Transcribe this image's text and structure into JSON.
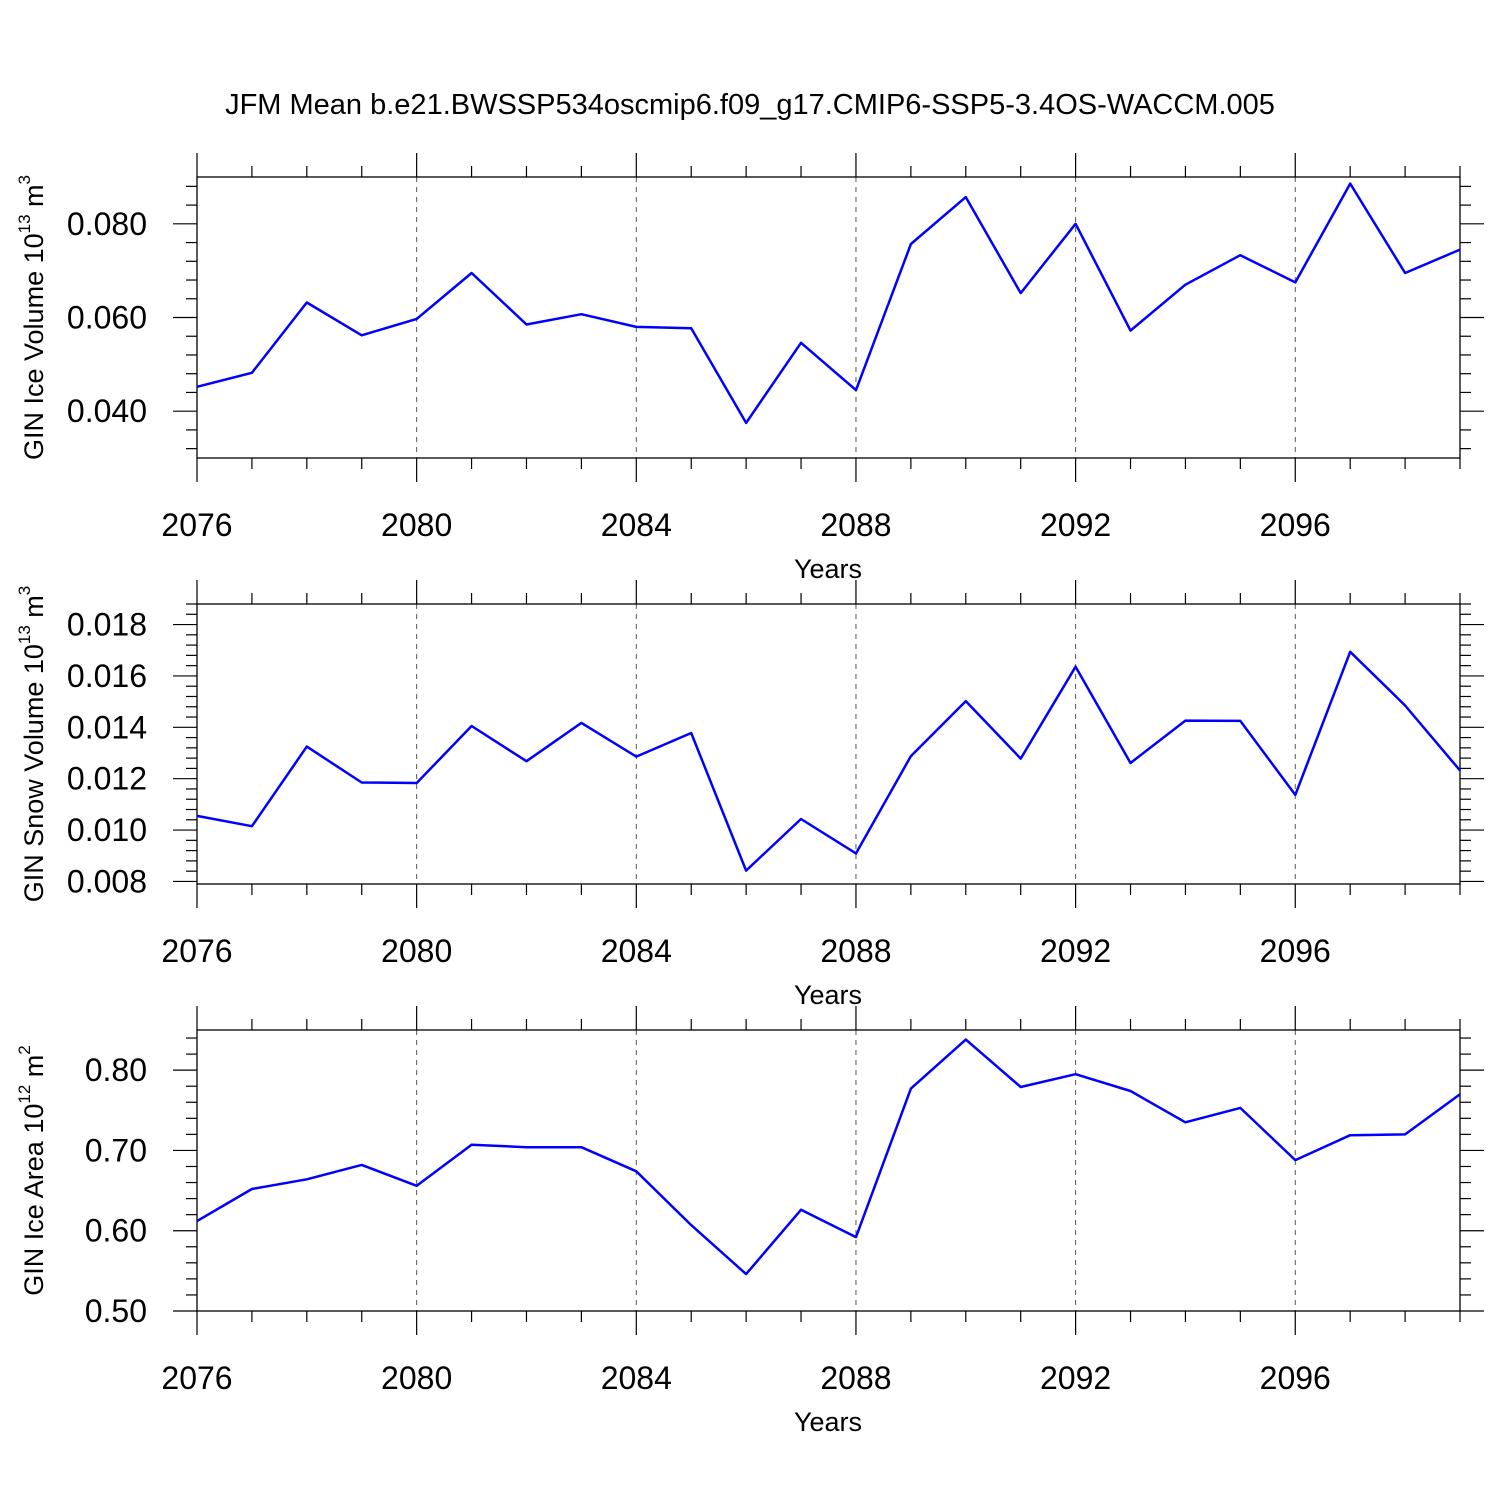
{
  "title": "JFM Mean b.e21.BWSSP534oscmip6.f09_g17.CMIP6-SSP5-3.4OS-WACCM.005",
  "line_color": "#0000ff",
  "chart_data": [
    {
      "type": "line",
      "ylabel_text": "GIN Ice Volume 10",
      "ylabel_exp": "13",
      "ylabel_unit": " m",
      "ylabel_unit_exp": "3",
      "xlabel": "Years",
      "xlim": [
        2076,
        2099
      ],
      "ylim": [
        0.03,
        0.09
      ],
      "yticks": [
        "0.040",
        "0.060",
        "0.080"
      ],
      "ytick_values": [
        0.04,
        0.06,
        0.08
      ],
      "xticks": [
        "2076",
        "2080",
        "2084",
        "2088",
        "2092",
        "2096"
      ],
      "xtick_values": [
        2076,
        2080,
        2084,
        2088,
        2092,
        2096
      ],
      "grid": "vertical dashed at major x ticks",
      "x": [
        2076,
        2077,
        2078,
        2079,
        2080,
        2081,
        2082,
        2083,
        2084,
        2085,
        2086,
        2087,
        2088,
        2089,
        2090,
        2091,
        2092,
        2093,
        2094,
        2095,
        2096,
        2097,
        2098,
        2099
      ],
      "values": [
        0.0452,
        0.0482,
        0.0632,
        0.0562,
        0.0597,
        0.0695,
        0.0585,
        0.0607,
        0.058,
        0.0577,
        0.0375,
        0.0546,
        0.0445,
        0.0757,
        0.0857,
        0.0652,
        0.08,
        0.0572,
        0.067,
        0.0733,
        0.0675,
        0.0886,
        0.0695,
        0.0745
      ]
    },
    {
      "type": "line",
      "ylabel_text": "GIN Snow Volume 10",
      "ylabel_exp": "13",
      "ylabel_unit": " m",
      "ylabel_unit_exp": "3",
      "xlabel": "Years",
      "xlim": [
        2076,
        2099
      ],
      "ylim": [
        0.0079,
        0.0188
      ],
      "yticks": [
        "0.008",
        "0.010",
        "0.012",
        "0.014",
        "0.016",
        "0.018"
      ],
      "ytick_values": [
        0.008,
        0.01,
        0.012,
        0.014,
        0.016,
        0.018
      ],
      "xticks": [
        "2076",
        "2080",
        "2084",
        "2088",
        "2092",
        "2096"
      ],
      "xtick_values": [
        2076,
        2080,
        2084,
        2088,
        2092,
        2096
      ],
      "grid": "vertical dashed at major x ticks",
      "x": [
        2076,
        2077,
        2078,
        2079,
        2080,
        2081,
        2082,
        2083,
        2084,
        2085,
        2086,
        2087,
        2088,
        2089,
        2090,
        2091,
        2092,
        2093,
        2094,
        2095,
        2096,
        2097,
        2098,
        2099
      ],
      "values": [
        0.01055,
        0.01015,
        0.01325,
        0.01185,
        0.01183,
        0.01405,
        0.01268,
        0.01417,
        0.01286,
        0.01378,
        0.00842,
        0.01043,
        0.00909,
        0.01288,
        0.01502,
        0.01278,
        0.01636,
        0.01261,
        0.01426,
        0.01425,
        0.01137,
        0.01694,
        0.01485,
        0.01232
      ]
    },
    {
      "type": "line",
      "ylabel_text": "GIN Ice Area 10",
      "ylabel_exp": "12",
      "ylabel_unit": " m",
      "ylabel_unit_exp": "2",
      "xlabel": "Years",
      "xlim": [
        2076,
        2099
      ],
      "ylim": [
        0.5,
        0.85
      ],
      "yticks": [
        "0.50",
        "0.60",
        "0.70",
        "0.80"
      ],
      "ytick_values": [
        0.5,
        0.6,
        0.7,
        0.8
      ],
      "xticks": [
        "2076",
        "2080",
        "2084",
        "2088",
        "2092",
        "2096"
      ],
      "xtick_values": [
        2076,
        2080,
        2084,
        2088,
        2092,
        2096
      ],
      "grid": "vertical dashed at major x ticks",
      "x": [
        2076,
        2077,
        2078,
        2079,
        2080,
        2081,
        2082,
        2083,
        2084,
        2085,
        2086,
        2087,
        2088,
        2089,
        2090,
        2091,
        2092,
        2093,
        2094,
        2095,
        2096,
        2097,
        2098,
        2099
      ],
      "values": [
        0.612,
        0.652,
        0.664,
        0.682,
        0.656,
        0.707,
        0.704,
        0.704,
        0.674,
        0.607,
        0.546,
        0.626,
        0.592,
        0.777,
        0.838,
        0.779,
        0.795,
        0.774,
        0.735,
        0.753,
        0.688,
        0.719,
        0.72,
        0.77
      ]
    }
  ]
}
